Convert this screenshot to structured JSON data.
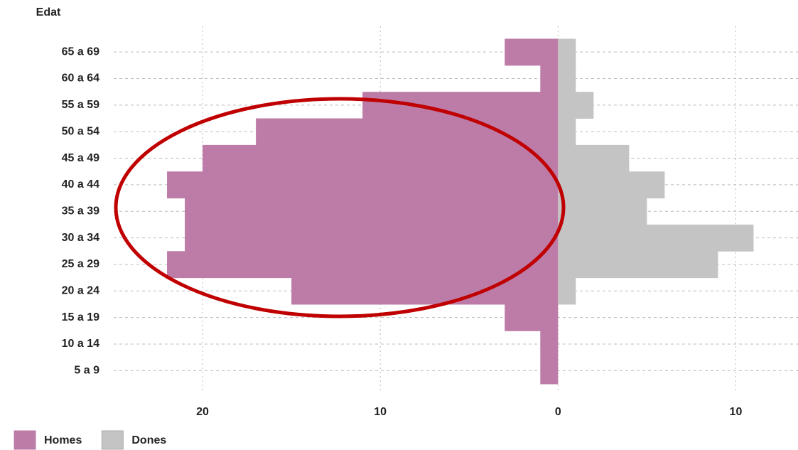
{
  "chart_data": {
    "type": "pyramid",
    "y_label": "Edat",
    "categories": [
      "65 a 69",
      "60 a 64",
      "55 a 59",
      "50 a 54",
      "45 a 49",
      "40 a 44",
      "35 a 39",
      "30 a 34",
      "25 a 29",
      "20 a 24",
      "15 a 19",
      "10 a 14",
      "5 a 9"
    ],
    "series": [
      {
        "name": "Homes",
        "color": "#bd7ba8",
        "values": [
          -3,
          -1,
          -11,
          -17,
          -20,
          -22,
          -21,
          -21,
          -22,
          -15,
          -3,
          -1,
          -1
        ]
      },
      {
        "name": "Dones",
        "color": "#c4c4c4",
        "values": [
          1,
          1,
          2,
          1,
          4,
          6,
          5,
          11,
          9,
          1,
          0,
          0,
          0
        ]
      }
    ],
    "xlim": [
      -25,
      13.5
    ],
    "xticks": [
      {
        "value": -20,
        "label": "20"
      },
      {
        "value": -10,
        "label": "10"
      },
      0,
      10
    ],
    "grid": true
  }
}
